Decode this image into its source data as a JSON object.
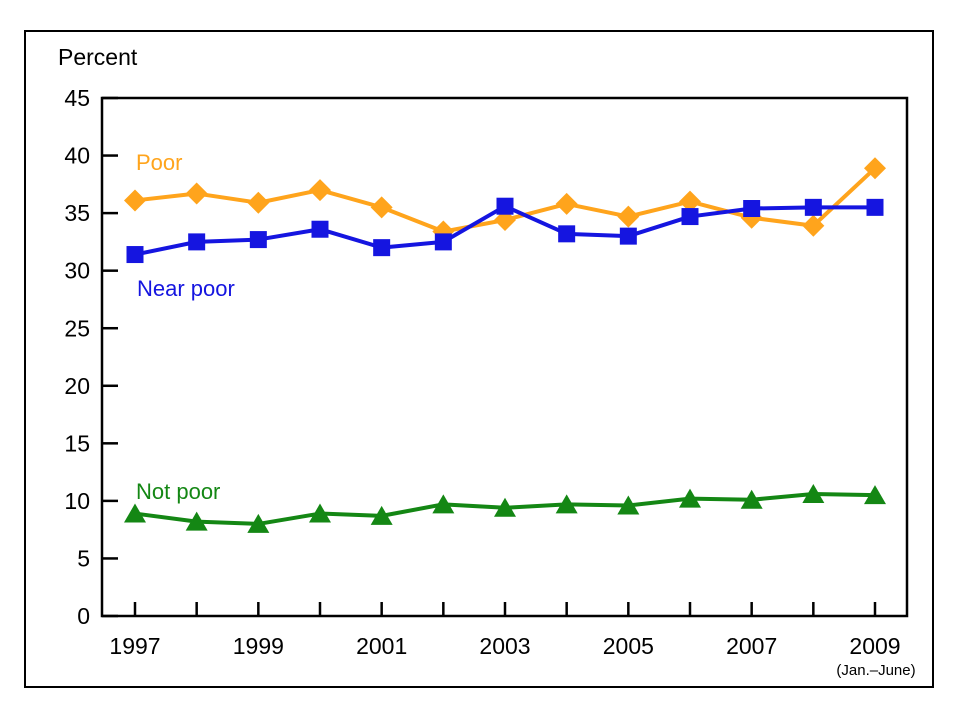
{
  "page": {
    "y_axis_title": "Percent",
    "x_axis_note": "(Jan.–June)"
  },
  "chart_data": {
    "type": "line",
    "title": "Percent",
    "xlabel": "",
    "ylabel": "Percent",
    "x": [
      1997,
      1998,
      1999,
      2000,
      2001,
      2002,
      2003,
      2004,
      2005,
      2006,
      2007,
      2008,
      2009
    ],
    "x_labeled_ticks": [
      1997,
      1999,
      2001,
      2003,
      2005,
      2007,
      2009
    ],
    "x_note": "(Jan.–June)",
    "ylim": [
      0,
      45
    ],
    "y_ticks": [
      0,
      5,
      10,
      15,
      20,
      25,
      30,
      35,
      40,
      45
    ],
    "grid": false,
    "legend_position": "inline-labels-on-chart",
    "frame": "full-box",
    "series": [
      {
        "name": "Poor",
        "color": "#FFA41C",
        "marker": "diamond",
        "values": [
          36.1,
          36.7,
          35.9,
          37.0,
          35.5,
          33.4,
          34.4,
          35.8,
          34.7,
          36.0,
          34.6,
          33.9,
          38.9
        ]
      },
      {
        "name": "Near poor",
        "color": "#1515E0",
        "marker": "square",
        "values": [
          31.4,
          32.5,
          32.7,
          33.6,
          32.0,
          32.5,
          35.6,
          33.2,
          33.0,
          34.7,
          35.4,
          35.5,
          35.5
        ]
      },
      {
        "name": "Not poor",
        "color": "#148714",
        "marker": "triangle",
        "values": [
          8.9,
          8.2,
          8.0,
          8.9,
          8.7,
          9.7,
          9.4,
          9.7,
          9.6,
          10.2,
          10.1,
          10.6,
          10.5
        ]
      }
    ],
    "axis_color": "#000000",
    "tick_label_color": "#000000"
  }
}
